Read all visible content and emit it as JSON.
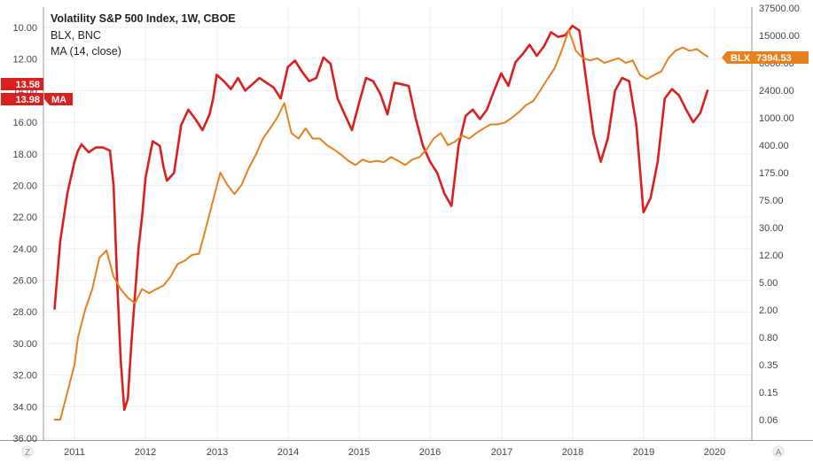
{
  "legend": {
    "line1": "Volatility S&P 500 Index, 1W, CBOE",
    "line2": "BLX, BNC",
    "line3": "MA (14, close)"
  },
  "price_tags": {
    "left_top": "13.58",
    "left_bottom": "13.98",
    "left_bottom_label": "MA",
    "right_label": "BLX",
    "right_value": "7394.53"
  },
  "corner_labels": {
    "left": "Z",
    "right": "A"
  },
  "colors": {
    "ma_line": "#d9201f",
    "blx_line": "#e8801e",
    "ma_tag": "#d9201f",
    "blx_tag": "#e8801e",
    "grid": "#eeeeee",
    "axis_text": "#444444"
  },
  "chart_data": {
    "type": "line",
    "title": "Volatility S&P 500 Index, 1W, CBOE",
    "x_axis": {
      "type": "time",
      "ticks": [
        "2011",
        "2012",
        "2013",
        "2014",
        "2015",
        "2016",
        "2017",
        "2018",
        "2019",
        "2020"
      ],
      "range": [
        2010.7,
        2020.2
      ]
    },
    "left_axis": {
      "inverted": true,
      "ticks": [
        "10.00",
        "12.00",
        "14.00",
        "16.00",
        "18.00",
        "20.00",
        "22.00",
        "24.00",
        "26.00",
        "28.00",
        "30.00",
        "32.00",
        "34.00",
        "36.00"
      ],
      "range": [
        9.0,
        36.0
      ]
    },
    "right_axis": {
      "scale": "log",
      "ticks": [
        "37500.00",
        "15000.00",
        "6000.00",
        "2400.00",
        "1000.00",
        "400.00",
        "175.00",
        "75.00",
        "30.00",
        "12.00",
        "5.00",
        "2.00",
        "0.80",
        "0.35",
        "0.15",
        "0.06"
      ]
    },
    "series": [
      {
        "name": "MA",
        "axis": "left",
        "color": "#d9201f",
        "x": [
          2010.72,
          2010.8,
          2010.9,
          2011.0,
          2011.05,
          2011.1,
          2011.2,
          2011.3,
          2011.4,
          2011.5,
          2011.55,
          2011.6,
          2011.65,
          2011.7,
          2011.75,
          2011.8,
          2011.85,
          2011.9,
          2011.95,
          2012.0,
          2012.1,
          2012.2,
          2012.25,
          2012.3,
          2012.4,
          2012.5,
          2012.6,
          2012.7,
          2012.8,
          2012.9,
          2012.95,
          2013.0,
          2013.1,
          2013.2,
          2013.3,
          2013.4,
          2013.5,
          2013.6,
          2013.7,
          2013.8,
          2013.9,
          2014.0,
          2014.1,
          2014.2,
          2014.3,
          2014.4,
          2014.5,
          2014.6,
          2014.7,
          2014.8,
          2014.9,
          2015.0,
          2015.1,
          2015.2,
          2015.3,
          2015.4,
          2015.5,
          2015.6,
          2015.7,
          2015.8,
          2015.9,
          2016.0,
          2016.1,
          2016.2,
          2016.3,
          2016.4,
          2016.5,
          2016.6,
          2016.7,
          2016.8,
          2016.9,
          2017.0,
          2017.1,
          2017.2,
          2017.3,
          2017.4,
          2017.5,
          2017.6,
          2017.7,
          2017.8,
          2017.9,
          2018.0,
          2018.1,
          2018.2,
          2018.3,
          2018.4,
          2018.5,
          2018.6,
          2018.7,
          2018.8,
          2018.9,
          2019.0,
          2019.1,
          2019.2,
          2019.3,
          2019.4,
          2019.5,
          2019.6,
          2019.7,
          2019.8,
          2019.9
        ],
        "y": [
          27.8,
          23.5,
          20.5,
          18.5,
          17.8,
          17.4,
          17.9,
          17.6,
          17.6,
          17.8,
          20.0,
          26.0,
          31.0,
          34.2,
          33.5,
          30.0,
          27.0,
          24.0,
          22.0,
          19.5,
          17.2,
          17.5,
          18.8,
          19.7,
          19.2,
          16.2,
          15.2,
          15.8,
          16.5,
          15.5,
          14.5,
          13.0,
          13.4,
          13.9,
          13.2,
          14.0,
          13.6,
          13.2,
          13.5,
          13.8,
          14.5,
          12.5,
          12.1,
          12.8,
          13.4,
          13.2,
          11.9,
          12.3,
          14.5,
          15.5,
          16.5,
          14.8,
          13.2,
          13.4,
          14.2,
          15.5,
          13.5,
          13.6,
          13.7,
          15.8,
          17.5,
          18.5,
          19.2,
          20.5,
          21.3,
          17.5,
          15.6,
          15.2,
          15.8,
          15.2,
          14.0,
          12.9,
          13.7,
          12.2,
          11.7,
          11.1,
          11.8,
          11.2,
          10.3,
          10.6,
          10.5,
          9.9,
          10.2,
          13.5,
          16.8,
          18.5,
          17.0,
          14.0,
          13.2,
          13.4,
          16.2,
          21.7,
          20.8,
          18.5,
          14.5,
          13.9,
          14.3,
          15.2,
          16.0,
          15.4,
          14.0
        ]
      },
      {
        "name": "BLX",
        "axis": "right",
        "color": "#e8801e",
        "x": [
          2010.72,
          2010.8,
          2010.9,
          2011.0,
          2011.05,
          2011.15,
          2011.25,
          2011.35,
          2011.45,
          2011.55,
          2011.65,
          2011.75,
          2011.85,
          2011.95,
          2012.05,
          2012.15,
          2012.25,
          2012.35,
          2012.45,
          2012.55,
          2012.65,
          2012.75,
          2012.85,
          2012.95,
          2013.05,
          2013.15,
          2013.25,
          2013.35,
          2013.45,
          2013.55,
          2013.65,
          2013.75,
          2013.85,
          2013.95,
          2014.05,
          2014.15,
          2014.25,
          2014.35,
          2014.45,
          2014.55,
          2014.65,
          2014.75,
          2014.85,
          2014.95,
          2015.05,
          2015.15,
          2015.25,
          2015.35,
          2015.45,
          2015.55,
          2015.65,
          2015.75,
          2015.85,
          2015.95,
          2016.05,
          2016.15,
          2016.25,
          2016.35,
          2016.45,
          2016.55,
          2016.65,
          2016.75,
          2016.85,
          2016.95,
          2017.05,
          2017.15,
          2017.25,
          2017.35,
          2017.45,
          2017.55,
          2017.65,
          2017.75,
          2017.85,
          2017.95,
          2018.05,
          2018.15,
          2018.25,
          2018.35,
          2018.45,
          2018.55,
          2018.65,
          2018.75,
          2018.85,
          2018.95,
          2019.05,
          2019.15,
          2019.25,
          2019.35,
          2019.45,
          2019.55,
          2019.65,
          2019.75,
          2019.85,
          2019.9
        ],
        "y": [
          0.06,
          0.06,
          0.15,
          0.35,
          0.8,
          2.0,
          4.0,
          11.0,
          14.0,
          6.0,
          4.0,
          3.0,
          2.5,
          4.0,
          3.5,
          4.0,
          4.5,
          6.0,
          9.0,
          10.0,
          12.0,
          12.5,
          30.0,
          75.0,
          175.0,
          120.0,
          90.0,
          120.0,
          200.0,
          300.0,
          500.0,
          700.0,
          1000.0,
          1600.0,
          600.0,
          500.0,
          700.0,
          500.0,
          500.0,
          400.0,
          350.0,
          300.0,
          250.0,
          220.0,
          260.0,
          240.0,
          250.0,
          240.0,
          280.0,
          250.0,
          220.0,
          260.0,
          280.0,
          350.0,
          500.0,
          600.0,
          400.0,
          450.0,
          550.0,
          500.0,
          600.0,
          700.0,
          800.0,
          800.0,
          850.0,
          1000.0,
          1200.0,
          1500.0,
          1700.0,
          2400.0,
          3500.0,
          5000.0,
          9000.0,
          18000.0,
          9000.0,
          7000.0,
          6500.0,
          7000.0,
          6000.0,
          6500.0,
          7000.0,
          6000.0,
          6500.0,
          4000.0,
          3500.0,
          4000.0,
          4500.0,
          7000.0,
          9000.0,
          10000.0,
          9000.0,
          9500.0,
          8000.0,
          7394.53
        ]
      }
    ]
  }
}
